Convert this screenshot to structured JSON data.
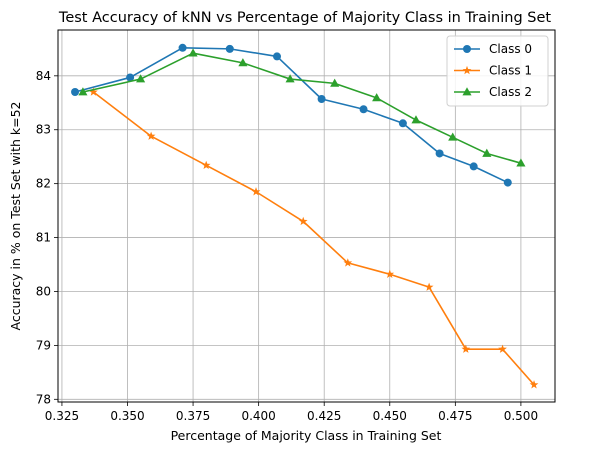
{
  "chart_data": {
    "type": "line",
    "title": "Test Accuracy of kNN vs Percentage of Majority Class in Training Set",
    "xlabel": "Percentage of Majority Class in Training Set",
    "ylabel": "Accuracy in % on Test Set with k=52",
    "xlim": [
      0.3235,
      0.513
    ],
    "ylim": [
      77.95,
      84.85
    ],
    "xticks": [
      0.325,
      0.35,
      0.375,
      0.4,
      0.425,
      0.45,
      0.475,
      0.5
    ],
    "xtick_labels": [
      "0.325",
      "0.350",
      "0.375",
      "0.400",
      "0.425",
      "0.450",
      "0.475",
      "0.500"
    ],
    "yticks": [
      78,
      79,
      80,
      81,
      82,
      83,
      84
    ],
    "ytick_labels": [
      "78",
      "79",
      "80",
      "81",
      "82",
      "83",
      "84"
    ],
    "grid": true,
    "legend_position": "top-right",
    "series": [
      {
        "name": "Class 0",
        "color": "#1f77b4",
        "marker": "circle",
        "x": [
          0.33,
          0.351,
          0.371,
          0.389,
          0.407,
          0.424,
          0.44,
          0.455,
          0.469,
          0.482,
          0.495
        ],
        "y": [
          83.7,
          83.97,
          84.52,
          84.5,
          84.36,
          83.57,
          83.38,
          83.12,
          82.56,
          82.32,
          82.02
        ]
      },
      {
        "name": "Class 1",
        "color": "#ff7f0e",
        "marker": "star",
        "x": [
          0.337,
          0.359,
          0.38,
          0.399,
          0.417,
          0.434,
          0.45,
          0.465,
          0.479,
          0.493,
          0.505
        ],
        "y": [
          83.7,
          82.88,
          82.34,
          81.85,
          81.3,
          80.53,
          80.32,
          80.08,
          78.93,
          78.93,
          78.27
        ]
      },
      {
        "name": "Class 2",
        "color": "#2ca02c",
        "marker": "triangle",
        "x": [
          0.333,
          0.355,
          0.375,
          0.394,
          0.412,
          0.429,
          0.445,
          0.46,
          0.474,
          0.487,
          0.5
        ],
        "y": [
          83.7,
          83.94,
          84.42,
          84.24,
          83.94,
          83.86,
          83.59,
          83.18,
          82.86,
          82.56,
          82.38
        ]
      }
    ]
  }
}
